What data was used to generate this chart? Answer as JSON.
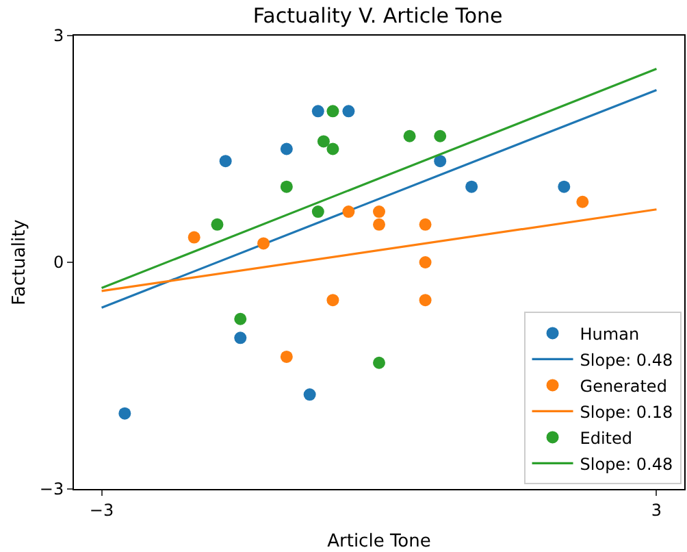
{
  "chart_data": {
    "type": "scatter",
    "title": "Factuality V. Article Tone",
    "xlabel": "Article Tone",
    "ylabel": "Factuality",
    "xlim": [
      -3.3,
      3.3
    ],
    "ylim": [
      -3,
      3
    ],
    "xticks": [
      {
        "value": -3,
        "label": "−3"
      },
      3
    ],
    "yticks": [
      {
        "value": -3,
        "label": "−3"
      },
      0,
      3
    ],
    "grid": false,
    "legend": "bottom right",
    "series": [
      {
        "name": "Human",
        "marker": "circle",
        "color": "#1f77b4",
        "x": [
          -0.66,
          -0.33,
          -1.66,
          -1.0,
          0.66,
          1.0,
          2.0,
          -1.5,
          -0.75,
          -2.75
        ],
        "values": [
          2.0,
          2.0,
          1.34,
          1.5,
          1.34,
          1.0,
          1.0,
          -1.0,
          -1.75,
          -2.0
        ]
      },
      {
        "name": "Slope: 0.48",
        "type": "line",
        "marker": "none",
        "color": "#1f77b4",
        "x": [
          -3,
          3
        ],
        "values": [
          -0.6,
          2.28
        ]
      },
      {
        "name": "Generated",
        "marker": "circle",
        "color": "#ff7f0e",
        "x": [
          -2.0,
          -1.25,
          -0.33,
          0,
          0,
          0.5,
          0.5,
          2.2,
          -0.5,
          0.5,
          -1.0
        ],
        "values": [
          0.33,
          0.25,
          0.67,
          0.67,
          0.5,
          0.5,
          0,
          0.8,
          -0.5,
          -0.5,
          -1.25
        ]
      },
      {
        "name": "Slope: 0.18",
        "type": "line",
        "marker": "none",
        "color": "#ff7f0e",
        "x": [
          -3,
          3
        ],
        "values": [
          -0.38,
          0.7
        ]
      },
      {
        "name": "Edited",
        "marker": "circle",
        "color": "#2ca02c",
        "x": [
          -0.5,
          -0.6,
          -0.5,
          0.33,
          0.66,
          -1.0,
          -0.66,
          -1.75,
          -1.5,
          0
        ],
        "values": [
          2.0,
          1.6,
          1.5,
          1.67,
          1.67,
          1.0,
          0.67,
          0.5,
          -0.75,
          -1.33
        ]
      },
      {
        "name": "Slope: 0.48",
        "type": "line",
        "marker": "none",
        "color": "#2ca02c",
        "x": [
          -3,
          3
        ],
        "values": [
          -0.34,
          2.56
        ]
      }
    ]
  }
}
